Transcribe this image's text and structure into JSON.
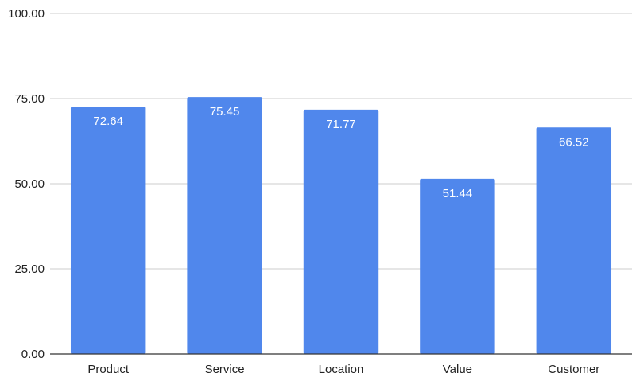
{
  "chart_data": {
    "type": "bar",
    "title": "",
    "xlabel": "",
    "ylabel": "",
    "categories": [
      "Product",
      "Service",
      "Location",
      "Value",
      "Customer"
    ],
    "values": [
      72.64,
      75.45,
      71.77,
      51.44,
      66.52
    ],
    "data_labels": [
      "72.64",
      "75.45",
      "71.77",
      "51.44",
      "66.52"
    ],
    "ylim": [
      0,
      100
    ],
    "y_ticks": [
      0,
      25,
      50,
      75,
      100
    ],
    "y_tick_labels": [
      "0.00",
      "25.00",
      "50.00",
      "75.00",
      "100.00"
    ],
    "grid": true,
    "legend": "none",
    "bar_color": "#5087EC"
  }
}
